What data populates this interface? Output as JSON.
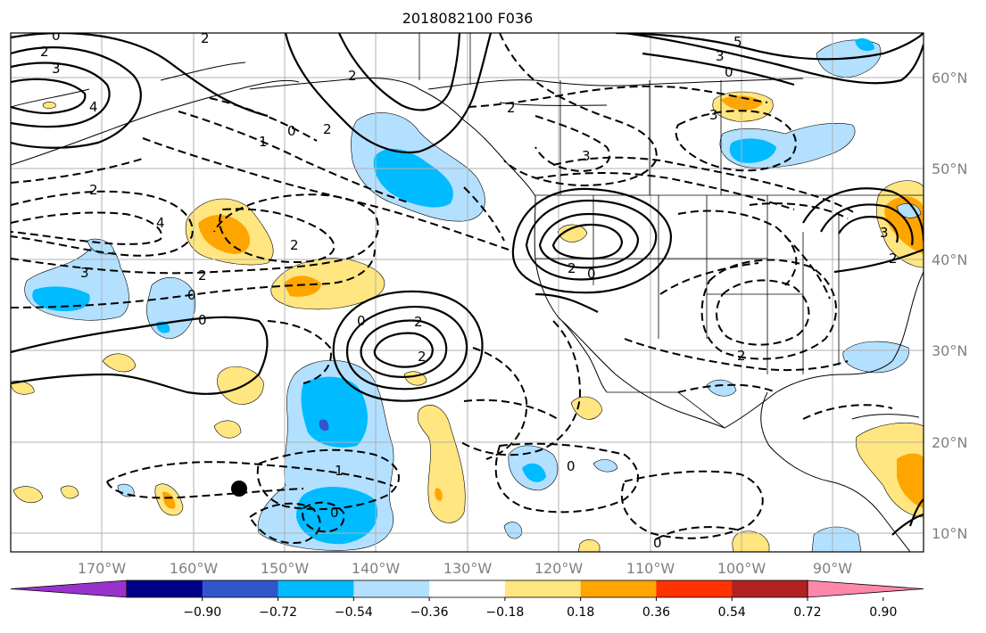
{
  "title": "2018082100 F036",
  "map": {
    "lon_labels": [
      "170°W",
      "160°W",
      "150°W",
      "140°W",
      "130°W",
      "120°W",
      "110°W",
      "100°W",
      "90°W"
    ],
    "lat_labels": [
      "60°N",
      "50°N",
      "40°N",
      "30°N",
      "20°N",
      "10°N"
    ],
    "contour_labels": [
      {
        "text": "0"
      },
      {
        "text": "2"
      },
      {
        "text": "3"
      },
      {
        "text": "4"
      },
      {
        "text": "2"
      },
      {
        "text": "1"
      },
      {
        "text": "0"
      },
      {
        "text": "2"
      },
      {
        "text": "4"
      },
      {
        "text": "2"
      },
      {
        "text": "3"
      },
      {
        "text": "2"
      },
      {
        "text": "0"
      },
      {
        "text": "0"
      },
      {
        "text": "2"
      },
      {
        "text": "2"
      },
      {
        "text": "1"
      },
      {
        "text": "0"
      },
      {
        "text": "0"
      },
      {
        "text": "2"
      },
      {
        "text": "0"
      },
      {
        "text": "2"
      },
      {
        "text": "2"
      },
      {
        "text": "0"
      },
      {
        "text": "3"
      },
      {
        "text": "5"
      },
      {
        "text": "3"
      },
      {
        "text": "0"
      },
      {
        "text": "3"
      },
      {
        "text": "2"
      },
      {
        "text": "2"
      },
      {
        "text": "3"
      },
      {
        "text": "2"
      },
      {
        "text": "0"
      }
    ],
    "marker": "black-dot"
  },
  "colorbar": {
    "colors": [
      "#9933cc",
      "#000088",
      "#3355cc",
      "#00bbff",
      "#b3e0ff",
      "#ffffff",
      "#ffe680",
      "#ffa500",
      "#ff3300",
      "#b22222",
      "#ff88aa"
    ],
    "tick_labels": [
      "−0.90",
      "−0.72",
      "−0.54",
      "−0.36",
      "−0.18",
      "0.18",
      "0.36",
      "0.54",
      "0.72",
      "0.90"
    ]
  }
}
